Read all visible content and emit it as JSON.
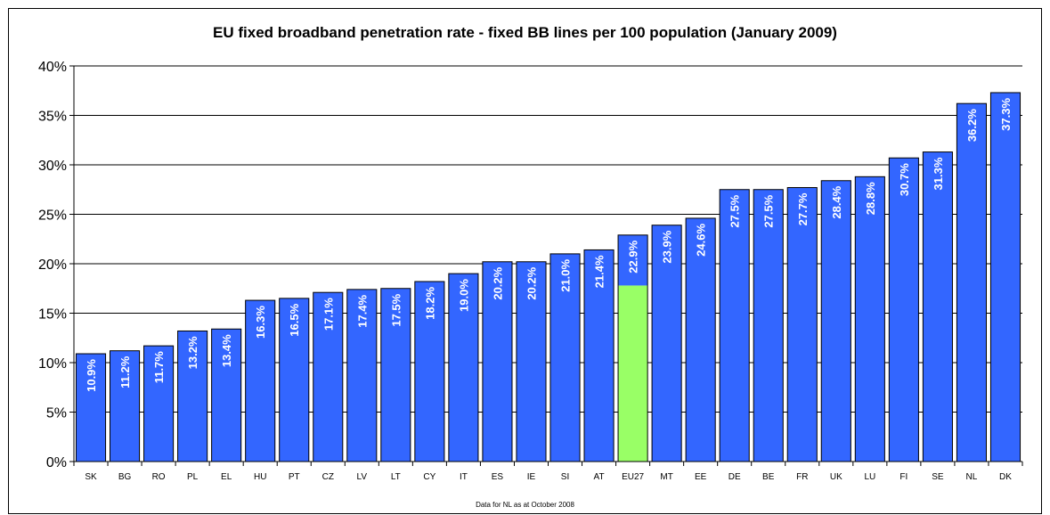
{
  "chart_data": {
    "type": "bar",
    "title": "EU fixed broadband penetration rate - fixed BB lines per 100 population (January 2009)",
    "footnote": "Data for NL as at October 2008",
    "categories": [
      "SK",
      "BG",
      "RO",
      "PL",
      "EL",
      "HU",
      "PT",
      "CZ",
      "LV",
      "LT",
      "CY",
      "IT",
      "ES",
      "IE",
      "SI",
      "AT",
      "EU27",
      "MT",
      "EE",
      "DE",
      "BE",
      "FR",
      "UK",
      "LU",
      "FI",
      "SE",
      "NL",
      "DK"
    ],
    "values": [
      10.9,
      11.2,
      11.7,
      13.2,
      13.4,
      16.3,
      16.5,
      17.1,
      17.4,
      17.5,
      18.2,
      19.0,
      20.2,
      20.2,
      21.0,
      21.4,
      22.9,
      23.9,
      24.6,
      27.5,
      27.5,
      27.7,
      28.4,
      28.8,
      30.7,
      31.3,
      36.2,
      37.3
    ],
    "data_labels": [
      "10.9%",
      "11.2%",
      "11.7%",
      "13.2%",
      "13.4%",
      "16.3%",
      "16.5%",
      "17.1%",
      "17.4%",
      "17.5%",
      "18.2%",
      "19.0%",
      "20.2%",
      "20.2%",
      "21.0%",
      "21.4%",
      "22.9%",
      "23.9%",
      "24.6%",
      "27.5%",
      "27.5%",
      "27.7%",
      "28.4%",
      "28.8%",
      "30.7%",
      "31.3%",
      "36.2%",
      "37.3%"
    ],
    "highlight": {
      "category": "EU27",
      "lower_segment_value": 17.8,
      "lower_color": "#99ff66"
    },
    "ylim": [
      0,
      40
    ],
    "yticks": [
      0,
      5,
      10,
      15,
      20,
      25,
      30,
      35,
      40
    ],
    "ytick_labels": [
      "0%",
      "5%",
      "10%",
      "15%",
      "20%",
      "25%",
      "30%",
      "35%",
      "40%"
    ],
    "grid": true,
    "legend": "none",
    "colors": {
      "bar": "#3366ff",
      "bar_border": "#000000",
      "highlight": "#99ff66",
      "label": "#ffffff"
    }
  }
}
